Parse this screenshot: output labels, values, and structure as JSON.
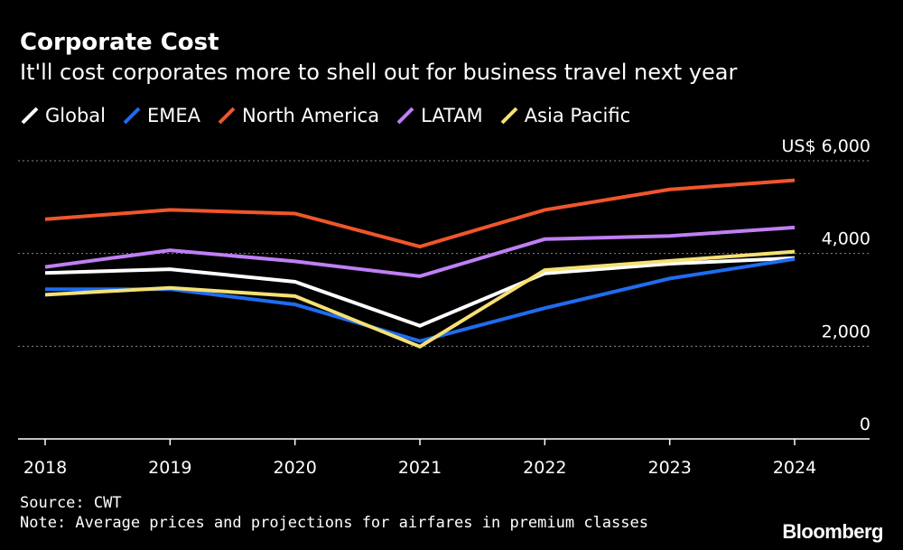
{
  "header": {
    "title": "Corporate Cost",
    "subtitle": "It'll cost corporates more to shell out for business travel next year"
  },
  "footer": {
    "source": "Source: CWT",
    "note": "Note: Average prices and projections for airfares in premium classes",
    "brand": "Bloomberg"
  },
  "chart_data": {
    "type": "line",
    "title": "Corporate Cost",
    "subtitle": "It'll cost corporates more to shell out for business travel next year",
    "x": [
      "2018",
      "2019",
      "2020",
      "2021",
      "2022",
      "2023",
      "2024"
    ],
    "y_axis": {
      "position": "right",
      "ticks": [
        0,
        2000,
        4000,
        6000
      ],
      "tick_labels": [
        "0",
        "2,000",
        "4,000",
        "US$ 6,000"
      ],
      "ylim": [
        0,
        6000
      ]
    },
    "grid": "horizontal-dotted",
    "legend_placement": "top-left",
    "series": [
      {
        "name": "Global",
        "color": "#ffffff",
        "values": [
          3580,
          3660,
          3390,
          2440,
          3570,
          3780,
          3900
        ]
      },
      {
        "name": "EMEA",
        "color": "#1f6cf0",
        "values": [
          3230,
          3230,
          2900,
          2110,
          2820,
          3460,
          3880
        ]
      },
      {
        "name": "North America",
        "color": "#f0562b",
        "values": [
          4740,
          4940,
          4860,
          4150,
          4940,
          5380,
          5580
        ]
      },
      {
        "name": "LATAM",
        "color": "#bf7ff5",
        "values": [
          3710,
          4070,
          3830,
          3510,
          4310,
          4380,
          4560
        ]
      },
      {
        "name": "Asia Pacific",
        "color": "#f5e174",
        "values": [
          3110,
          3260,
          3080,
          1990,
          3640,
          3840,
          4040
        ]
      }
    ]
  }
}
